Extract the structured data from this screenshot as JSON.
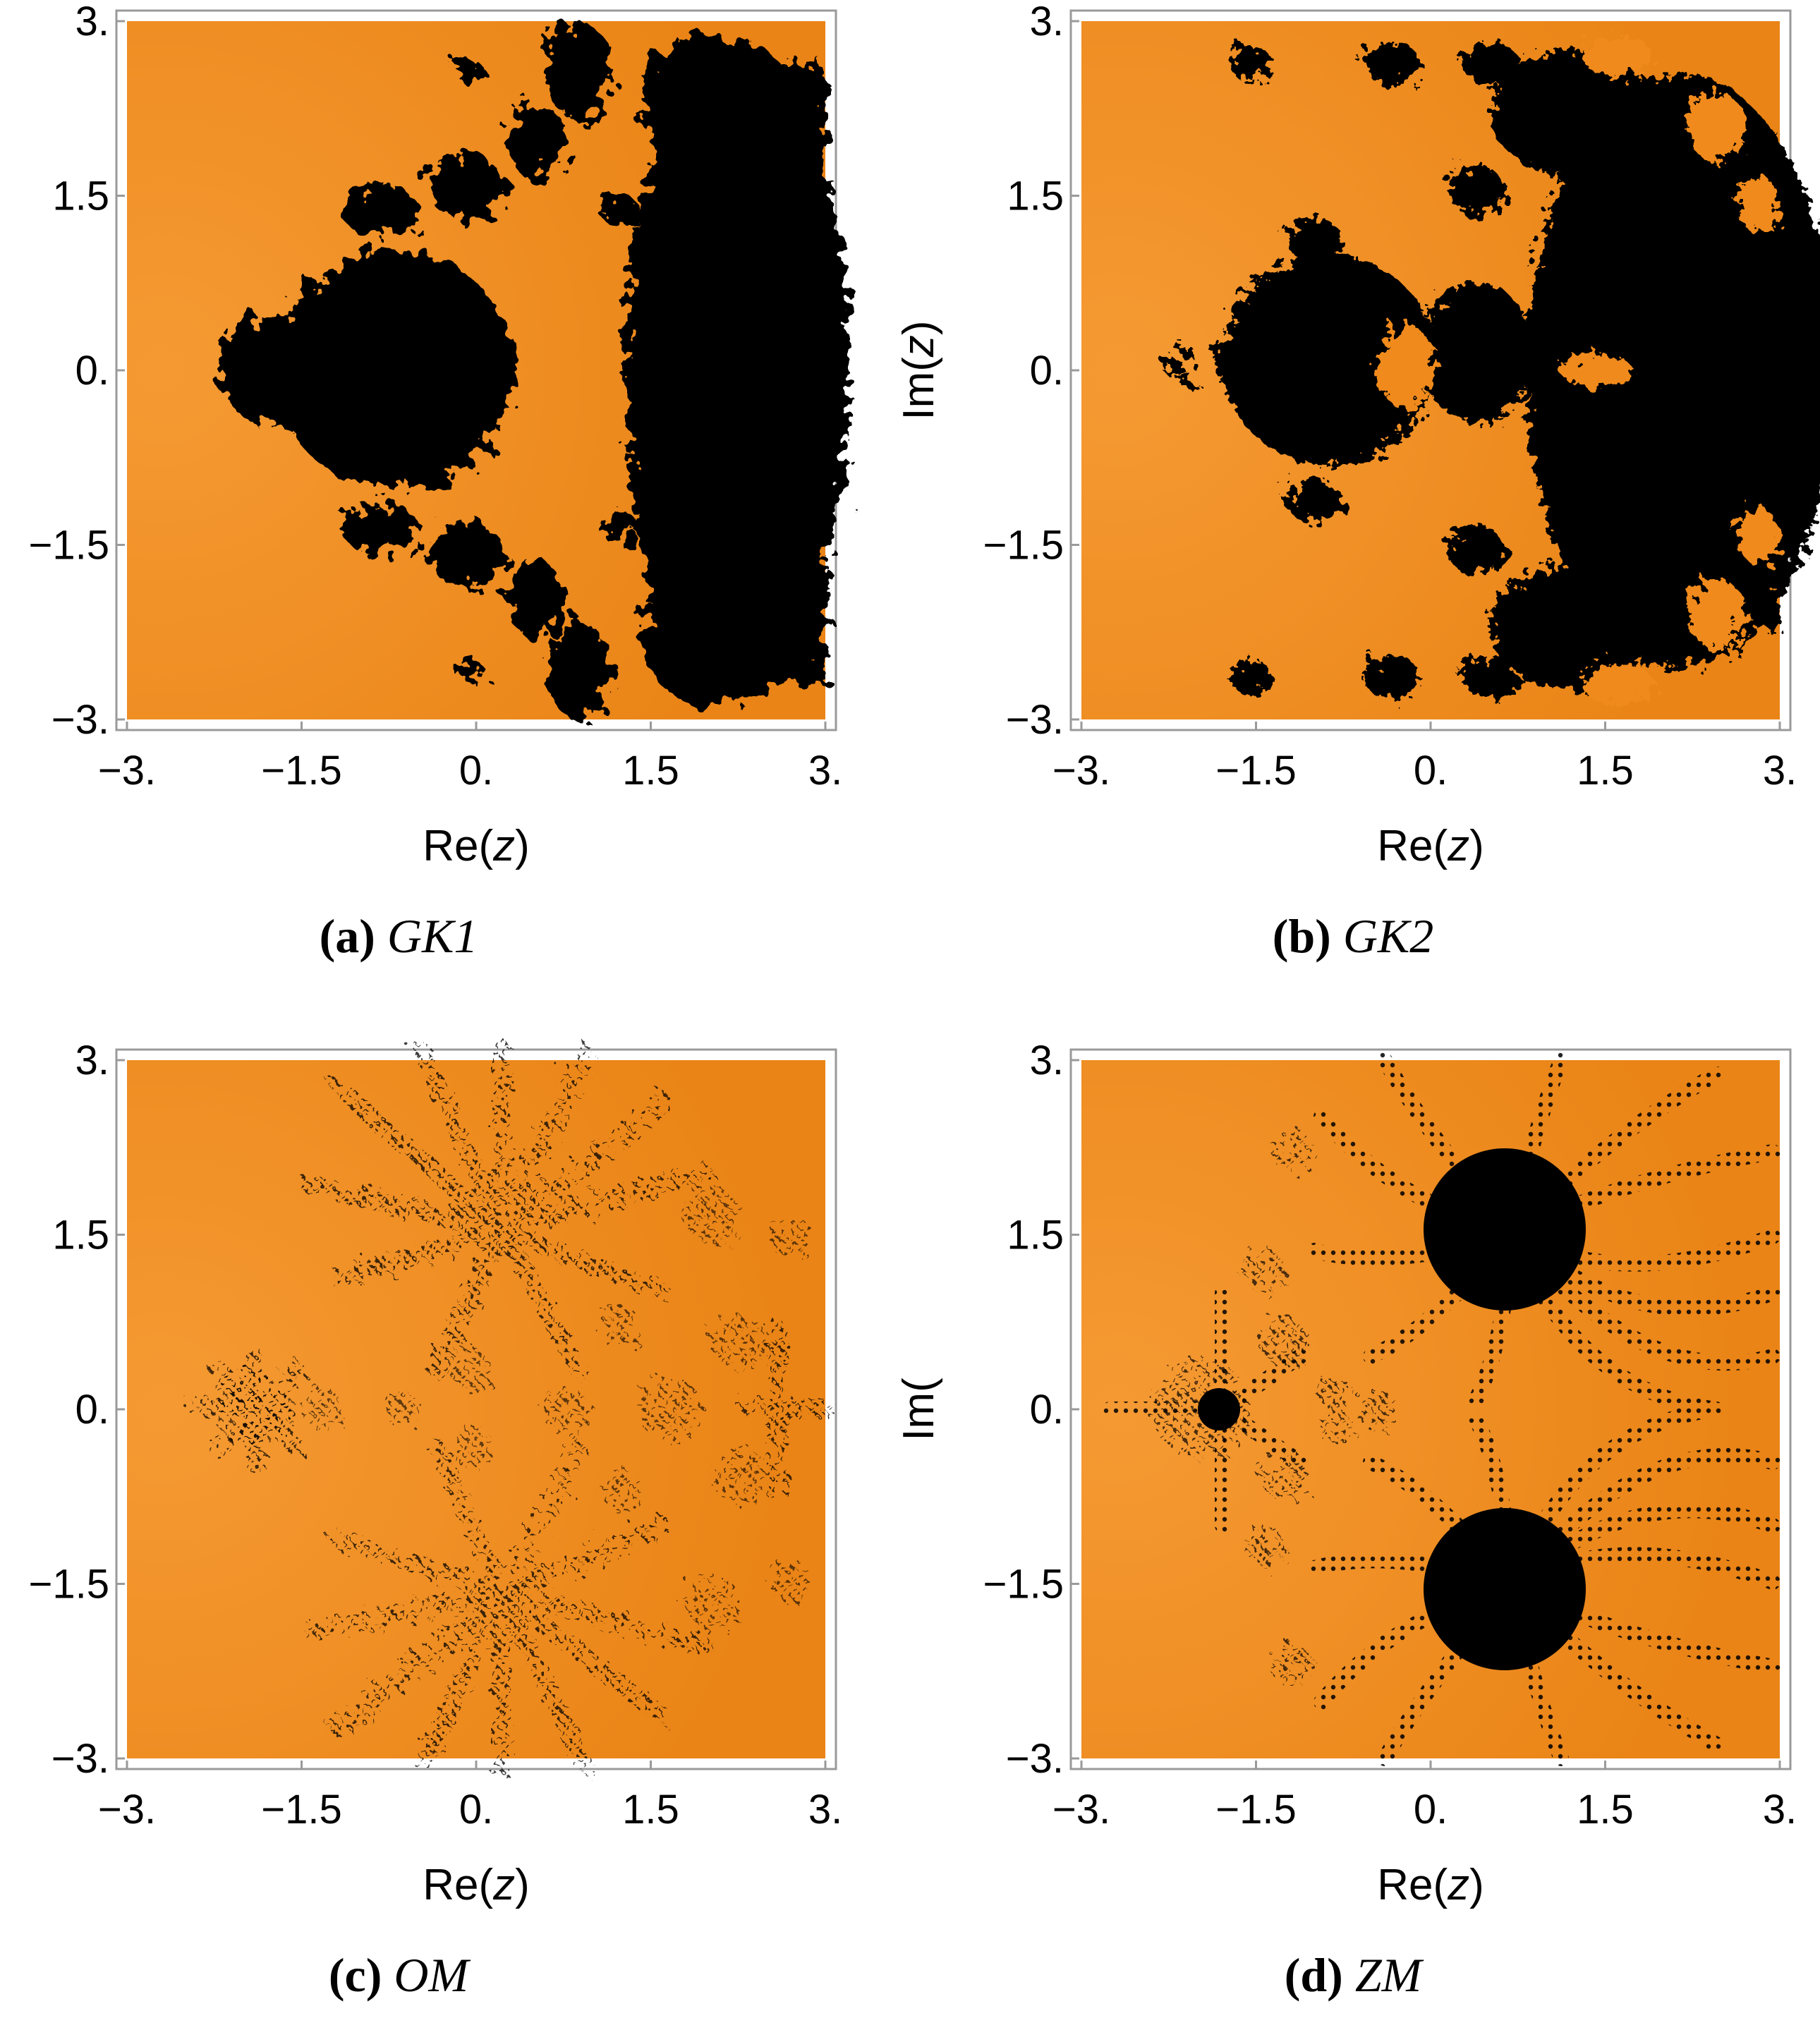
{
  "panels": [
    {
      "id": "a",
      "letter": "(a)",
      "label": "GK1",
      "xlabel_pre": "Re(",
      "xlabel_var": "z",
      "xlabel_post": ")",
      "ylabel_pre": "",
      "ylabel_var": "",
      "ylabel_post": ""
    },
    {
      "id": "b",
      "letter": "(b)",
      "label": "GK2",
      "xlabel_pre": "Re(",
      "xlabel_var": "z",
      "xlabel_post": ")",
      "ylabel_pre": "Im(",
      "ylabel_var": "z",
      "ylabel_post": ")"
    },
    {
      "id": "c",
      "letter": "(c)",
      "label": "OM",
      "xlabel_pre": "Re(",
      "xlabel_var": "z",
      "xlabel_post": ")",
      "ylabel_pre": "",
      "ylabel_var": "",
      "ylabel_post": ""
    },
    {
      "id": "d",
      "letter": "(d)",
      "label": "ZM",
      "xlabel_pre": "Re(",
      "xlabel_var": "z",
      "xlabel_post": ")",
      "ylabel_pre": "Im(",
      "ylabel_var": "",
      "ylabel_post": ""
    }
  ],
  "tick_labels": {
    "x": [
      "−3.",
      "−1.5",
      "0.",
      "1.5",
      "3."
    ],
    "y": [
      "3.",
      "1.5",
      "0.",
      "−1.5",
      "−3."
    ]
  },
  "colors": {
    "basin": "#f08a1a",
    "nonconvergent": "#000000",
    "background": "#ffffff"
  },
  "chart_data": [
    {
      "type": "heatmap",
      "panel": "a",
      "xlim": [
        -3,
        3
      ],
      "ylim": [
        -3,
        3
      ],
      "xticks": [
        -3,
        -1.5,
        0,
        1.5,
        3
      ],
      "yticks": [
        -3,
        -1.5,
        0,
        1.5,
        3
      ]
    },
    {
      "type": "heatmap",
      "panel": "b",
      "xlim": [
        -3,
        3
      ],
      "ylim": [
        -3,
        3
      ],
      "xticks": [
        -3,
        -1.5,
        0,
        1.5,
        3
      ],
      "yticks": [
        -3,
        -1.5,
        0,
        1.5,
        3
      ]
    },
    {
      "type": "heatmap",
      "panel": "c",
      "xlim": [
        -3,
        3
      ],
      "ylim": [
        -3,
        3
      ],
      "xticks": [
        -3,
        -1.5,
        0,
        1.5,
        3
      ],
      "yticks": [
        -3,
        -1.5,
        0,
        1.5,
        3
      ]
    },
    {
      "type": "heatmap",
      "panel": "d",
      "xlim": [
        -3,
        3
      ],
      "ylim": [
        -3,
        3
      ],
      "xticks": [
        -3,
        -1.5,
        0,
        1.5,
        3
      ],
      "yticks": [
        -3,
        -1.5,
        0,
        1.5,
        3
      ]
    }
  ]
}
